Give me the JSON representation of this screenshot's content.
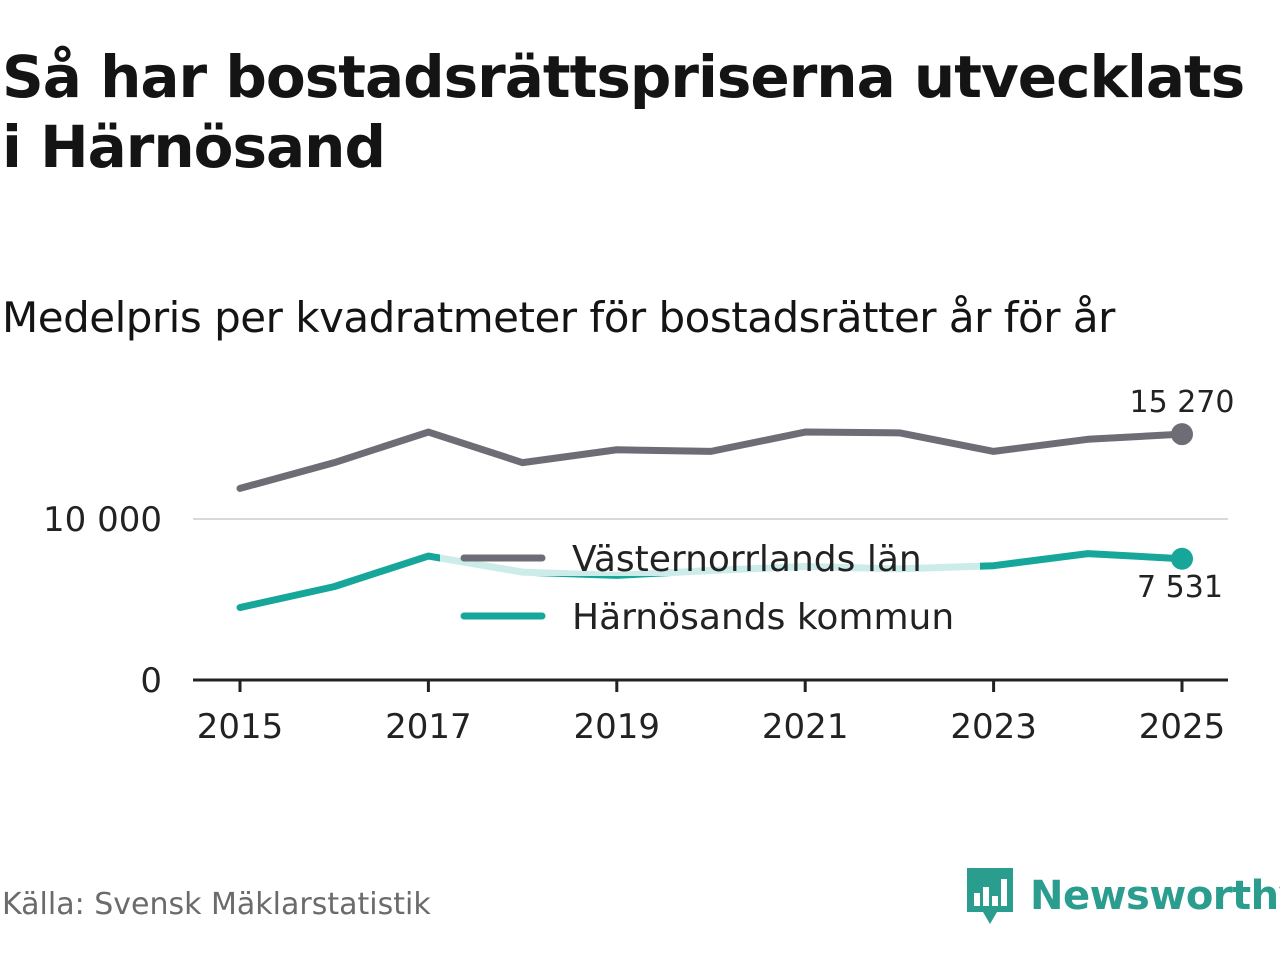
{
  "title": "Så har bostadsrättspriserna utvecklats i Härnösand",
  "subtitle": "Medelpris per kvadratmeter för bostadsrätter år för år",
  "source": "Källa: Svensk Mäklarstatistik",
  "brand": {
    "name": "Newsworthy",
    "logo_icon": "newsworthy-logo-icon",
    "color": "#2a9d8f"
  },
  "chart_data": {
    "type": "line",
    "title": "Så har bostadsrättspriserna utvecklats i Härnösand",
    "subtitle": "Medelpris per kvadratmeter för bostadsrätter år för år",
    "xlabel": "",
    "ylabel": "",
    "x": [
      2015,
      2016,
      2017,
      2018,
      2019,
      2020,
      2021,
      2022,
      2023,
      2024,
      2025
    ],
    "xlim": [
      2015,
      2025
    ],
    "ylim": [
      0,
      16500
    ],
    "x_ticks": [
      2015,
      2017,
      2019,
      2021,
      2023,
      2025
    ],
    "x_tick_labels": [
      "2015",
      "2017",
      "2019",
      "2021",
      "2023",
      "2025"
    ],
    "y_ticks": [
      0,
      10000
    ],
    "y_tick_labels": [
      "0",
      "10 000"
    ],
    "grid": "horizontal",
    "legend_position": "center",
    "series": [
      {
        "name": "Västernorrlands län",
        "color": "#6e6d75",
        "values": [
          11900,
          13500,
          15400,
          13500,
          14300,
          14200,
          15400,
          15350,
          14200,
          14950,
          15270
        ],
        "end_label": "15 270"
      },
      {
        "name": "Härnösands kommun",
        "color": "#16a79a",
        "values": [
          4500,
          5800,
          7700,
          6700,
          6500,
          6800,
          7050,
          6900,
          7100,
          7850,
          7531
        ],
        "end_label": "7 531"
      }
    ]
  }
}
